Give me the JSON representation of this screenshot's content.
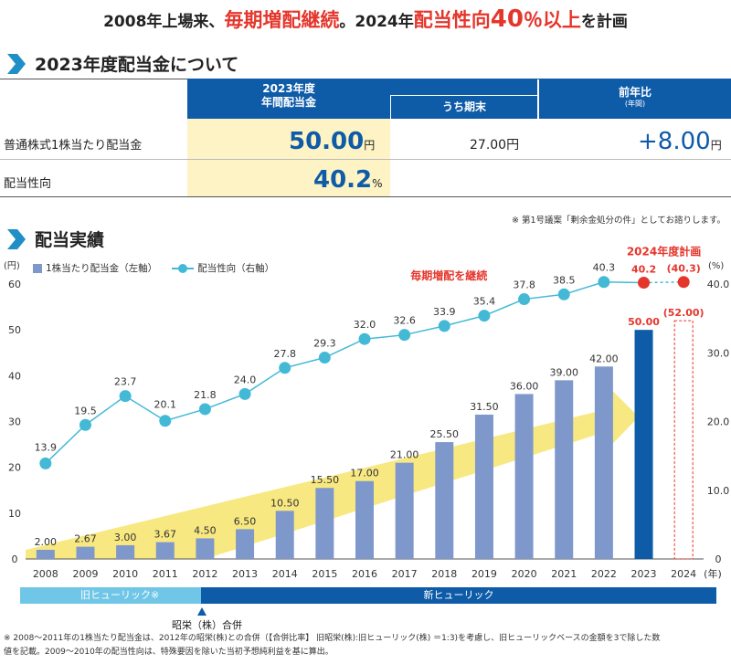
{
  "headline": {
    "part1": "2008年上場来、",
    "part2": "毎期増配継続",
    "part3": "。2024年",
    "part4": "配当性向",
    "part5": "40",
    "part6": "％以上",
    "part7": "を計画"
  },
  "section1_title": "2023年度配当金について",
  "table": {
    "col1_header_line1": "2023年度",
    "col1_header_line2": "年間配当金",
    "col2_header": "うち期末",
    "col3_header": "前年比",
    "col3_sub": "(年間)",
    "row1_label": "普通株式1株当たり配当金",
    "row1_value": "50.00",
    "row1_unit": "円",
    "row1_interim": "27.00円",
    "row1_yoy": "+8.00",
    "row1_yoy_unit": "円",
    "row2_label": "配当性向",
    "row2_value": "40.2",
    "row2_unit": "%"
  },
  "table_note": "※ 第1号議案「剰余金処分の件」としてお諮りします。",
  "section2_title": "配当実績",
  "colors": {
    "bar": "#7f98cc",
    "bar2023": "#0e5ba8",
    "line": "#43b9d6",
    "plan": "#e5362c",
    "arrow": "#f7e46b"
  },
  "chart_data": {
    "type": "bar",
    "categories": [
      "2008",
      "2009",
      "2010",
      "2011",
      "2012",
      "2013",
      "2014",
      "2015",
      "2016",
      "2017",
      "2018",
      "2019",
      "2020",
      "2021",
      "2022",
      "2023",
      "2024"
    ],
    "x_unit": "(年)",
    "series": [
      {
        "name": "1株当たり配当金（左軸）",
        "axis": "left",
        "values": [
          2.0,
          2.67,
          3.0,
          3.67,
          4.5,
          6.5,
          10.5,
          15.5,
          17.0,
          21.0,
          25.5,
          31.5,
          36.0,
          39.0,
          42.0,
          50.0,
          52.0
        ],
        "labels": [
          "2.00",
          "2.67",
          "3.00",
          "3.67",
          "4.50",
          "6.50",
          "10.50",
          "15.50",
          "17.00",
          "21.00",
          "25.50",
          "31.50",
          "36.00",
          "39.00",
          "42.00",
          "50.00",
          "(52.00)"
        ]
      },
      {
        "name": "配当性向（右軸）",
        "axis": "right",
        "values": [
          13.9,
          19.5,
          23.7,
          20.1,
          21.8,
          24.0,
          27.8,
          29.3,
          32.0,
          32.6,
          33.9,
          35.4,
          37.8,
          38.5,
          40.3,
          40.2,
          40.3
        ],
        "labels": [
          "13.9",
          "19.5",
          "23.7",
          "20.1",
          "21.8",
          "24.0",
          "27.8",
          "29.3",
          "32.0",
          "32.6",
          "33.9",
          "35.4",
          "37.8",
          "38.5",
          "40.3",
          "40.2",
          "(40.3)"
        ]
      }
    ],
    "y_left": {
      "unit": "(円)",
      "ticks": [
        "0",
        "10",
        "20",
        "30",
        "40",
        "50",
        "60"
      ],
      "min": 0,
      "max": 60
    },
    "y_right": {
      "unit": "(%)",
      "ticks": [
        "0",
        "10.0",
        "20.0",
        "30.0",
        "40.0"
      ],
      "min": 0,
      "max": 40
    },
    "annotation_arrow": "毎期増配を継続",
    "annotation_plan": "2024年度計画",
    "grid": false,
    "legend_position": "top-left"
  },
  "eras": {
    "old": "旧ヒューリック※",
    "new": "新ヒューリック",
    "merger": "昭栄（株）合併"
  },
  "footnote_line1": "※ 2008～2011年の1株当たり配当金は、2012年の昭栄(株)との合併（【合併比率】 旧昭栄(株):旧ヒューリック(株) ＝1:3)を考慮し、旧ヒューリックベースの金額を3で除した数",
  "footnote_line2": "値を記載。2009～2010年の配当性向は、特殊要因を除いた当初予想純利益を基に算出。"
}
